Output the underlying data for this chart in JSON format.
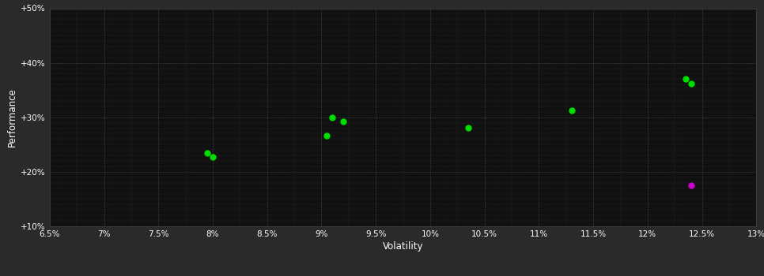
{
  "background_color": "#2a2a2a",
  "plot_bg_color": "#111111",
  "grid_color": "#444444",
  "text_color": "#ffffff",
  "xlabel": "Volatility",
  "ylabel": "Performance",
  "xlim": [
    0.065,
    0.13
  ],
  "ylim": [
    0.1,
    0.5
  ],
  "xticks": [
    0.065,
    0.07,
    0.075,
    0.08,
    0.085,
    0.09,
    0.095,
    0.1,
    0.105,
    0.11,
    0.115,
    0.12,
    0.125,
    0.13
  ],
  "xtick_labels": [
    "6.5%",
    "7%",
    "7.5%",
    "8%",
    "8.5%",
    "9%",
    "9.5%",
    "10%",
    "10.5%",
    "11%",
    "11.5%",
    "12%",
    "12.5%",
    "13%"
  ],
  "yticks": [
    0.1,
    0.2,
    0.3,
    0.4,
    0.5
  ],
  "ytick_labels": [
    "+10%",
    "+20%",
    "+30%",
    "+40%",
    "+50%"
  ],
  "green_points": [
    [
      0.0795,
      0.234
    ],
    [
      0.08,
      0.227
    ],
    [
      0.0905,
      0.266
    ],
    [
      0.091,
      0.3
    ],
    [
      0.092,
      0.292
    ],
    [
      0.1035,
      0.281
    ],
    [
      0.113,
      0.312
    ],
    [
      0.1235,
      0.371
    ],
    [
      0.124,
      0.362
    ]
  ],
  "magenta_points": [
    [
      0.124,
      0.175
    ]
  ],
  "point_size": 25,
  "green_color": "#00dd00",
  "magenta_color": "#cc00cc"
}
